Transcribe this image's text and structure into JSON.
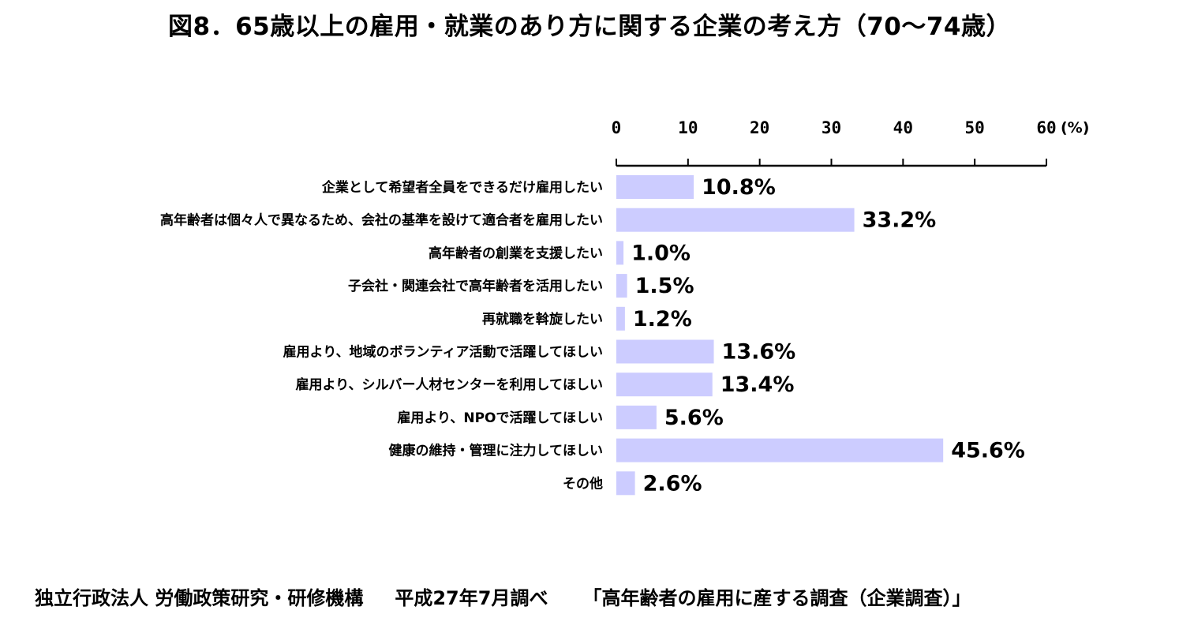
{
  "chart_data": {
    "type": "bar",
    "orientation": "horizontal",
    "title": "図8．65歳以上の雇用・就業のあり方に関する企業の考え方（70～74歳）",
    "unit": "(%)",
    "xlim": [
      0,
      60
    ],
    "ticks": [
      "0",
      "10",
      "20",
      "30",
      "40",
      "50",
      "60"
    ],
    "tick_values": [
      0,
      10,
      20,
      30,
      40,
      50,
      60
    ],
    "axis_position": "top",
    "grid": false,
    "bar_color": "#ccccff",
    "categories": [
      "企業として希望者全員をできるだけ雇用したい",
      "高年齢者は個々人で異なるため、会社の基準を設けて適合者を雇用したい",
      "高年齢者の創業を支援したい",
      "子会社・関連会社で高年齢者を活用したい",
      "再就職を斡旋したい",
      "雇用より、地域のボランティア活動で活躍してほしい",
      "雇用より、シルバー人材センターを利用してほしい",
      "雇用より、NPOで活躍してほしい",
      "健康の維持・管理に注力してほしい",
      "その他"
    ],
    "values": [
      10.8,
      33.2,
      1.0,
      1.5,
      1.2,
      13.6,
      13.4,
      5.6,
      45.6,
      2.6
    ],
    "value_labels": [
      "10.8%",
      "33.2%",
      "1.0%",
      "1.5%",
      "1.2%",
      "13.6%",
      "13.4%",
      "5.6%",
      "45.6%",
      "2.6%"
    ]
  },
  "footer": {
    "org": "独立行政法人 労働政策研究・研修機構",
    "date": "平成27年7月調べ",
    "survey": "「高年齢者の雇用に産する調査（企業調査）」"
  }
}
